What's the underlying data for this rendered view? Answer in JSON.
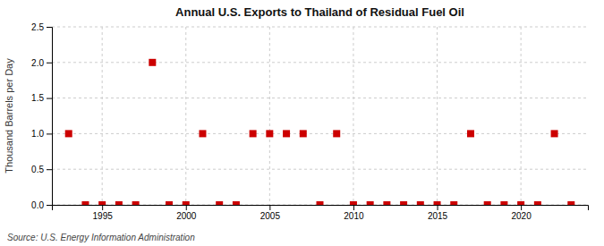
{
  "chart_data": {
    "type": "scatter",
    "title": "Annual U.S. Exports to Thailand of Residual Fuel Oil",
    "ylabel": "Thousand Barrels per Day",
    "source": "Source: U.S. Energy Information Administration",
    "x": [
      1993,
      1994,
      1995,
      1996,
      1997,
      1998,
      1999,
      2000,
      2001,
      2002,
      2003,
      2004,
      2005,
      2006,
      2007,
      2008,
      2009,
      2010,
      2011,
      2012,
      2013,
      2014,
      2015,
      2016,
      2017,
      2018,
      2019,
      2020,
      2021,
      2022,
      2023
    ],
    "values": [
      1.0,
      0.0,
      0.0,
      0.0,
      0.0,
      2.0,
      0.0,
      0.0,
      1.0,
      0.0,
      0.0,
      1.0,
      1.0,
      1.0,
      1.0,
      0.0,
      1.0,
      0.0,
      0.0,
      0.0,
      0.0,
      0.0,
      0.0,
      0.0,
      1.0,
      0.0,
      0.0,
      0.0,
      0.0,
      1.0,
      0.0
    ],
    "color": "#cc0000",
    "marker": "square",
    "xlim": [
      1992,
      2024
    ],
    "ylim": [
      0.0,
      2.5
    ],
    "xticks": [
      1995,
      2000,
      2005,
      2010,
      2015,
      2020
    ],
    "yticks": [
      {
        "value": 0.0,
        "label": "0.0"
      },
      0.5,
      {
        "value": 1.0,
        "label": "1.0"
      },
      1.5,
      {
        "value": 2.0,
        "label": "2.0"
      },
      2.5
    ],
    "grid": true
  }
}
